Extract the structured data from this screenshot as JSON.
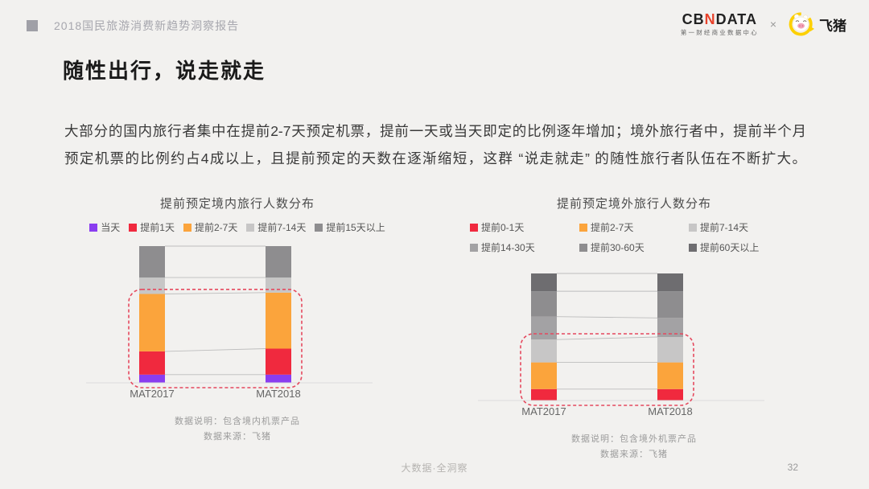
{
  "header": {
    "report_title": "2018国民旅游消费新趋势洞察报告",
    "cbndata_logo": {
      "prefix": "CB",
      "n": "N",
      "suffix": "DATA",
      "subtitle": "第一财经商业数据中心"
    },
    "multiply_sign": "×",
    "fliggy_label": "飞猪"
  },
  "page": {
    "title": "随性出行，说走就走",
    "body_line1": "大部分的国内旅行者集中在提前2-7天预定机票，提前一天或当天即定的比例逐年增加；境外旅行者中，提前半个月",
    "body_line2": "预定机票的比例约占4成以上，且提前预定的天数在逐渐缩短，这群 “说走就走” 的随性旅行者队伍在不断扩大。"
  },
  "chart_data": [
    {
      "type": "bar",
      "stacked": true,
      "title": "提前预定境内旅行人数分布",
      "categories": [
        "MAT2017",
        "MAT2018"
      ],
      "series": [
        {
          "name": "当天",
          "color": "#8a3df0",
          "values": [
            6,
            6
          ]
        },
        {
          "name": "提前1天",
          "color": "#f0293e",
          "values": [
            17,
            19
          ]
        },
        {
          "name": "提前2-7天",
          "color": "#fba43c",
          "values": [
            42,
            41
          ]
        },
        {
          "name": "提前7-14天",
          "color": "#c7c6c6",
          "values": [
            12,
            11
          ]
        },
        {
          "name": "提前15天以上",
          "color": "#8e8d8f",
          "values": [
            23,
            23
          ]
        }
      ],
      "value_unit": "share of travelers (%, estimated from bar heights)",
      "legend_position": "top",
      "grid": false,
      "highlight": {
        "segments": [
          "当天",
          "提前1天",
          "提前2-7天"
        ],
        "color": "#e5495e",
        "style": "dashed-rounded-rect"
      },
      "note_line1": "数据说明：包含境内机票产品",
      "note_line2": "数据来源：飞猪"
    },
    {
      "type": "bar",
      "stacked": true,
      "title": "提前预定境外旅行人数分布",
      "categories": [
        "MAT2017",
        "MAT2018"
      ],
      "series": [
        {
          "name": "提前0-1天",
          "color": "#f0293e",
          "values": [
            9,
            9
          ]
        },
        {
          "name": "提前2-7天",
          "color": "#fba43c",
          "values": [
            21,
            21
          ]
        },
        {
          "name": "提前7-14天",
          "color": "#c7c6c6",
          "values": [
            18,
            20
          ]
        },
        {
          "name": "提前14-30天",
          "color": "#a3a2a4",
          "values": [
            18,
            15
          ]
        },
        {
          "name": "提前30-60天",
          "color": "#8e8d8f",
          "values": [
            20,
            21
          ]
        },
        {
          "name": "提前60天以上",
          "color": "#6e6d70",
          "values": [
            14,
            14
          ]
        }
      ],
      "value_unit": "share of travelers (%, estimated from bar heights)",
      "legend_position": "top",
      "grid": false,
      "highlight": {
        "segments": [
          "提前0-1天",
          "提前2-7天",
          "提前7-14天"
        ],
        "color": "#e5495e",
        "style": "dashed-rounded-rect"
      },
      "note_line1": "数据说明：包含境外机票产品",
      "note_line2": "数据来源：飞猪"
    }
  ],
  "footer": {
    "slogan": "大数据·全洞察",
    "page_number": "32"
  }
}
